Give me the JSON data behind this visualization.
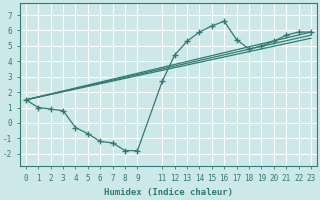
{
  "xlabel": "Humidex (Indice chaleur)",
  "bg_color": "#cde8e8",
  "grid_color": "#ffffff",
  "line_color": "#2e7d72",
  "xlim": [
    -0.5,
    23.5
  ],
  "ylim": [
    -2.8,
    7.8
  ],
  "xticks": [
    0,
    1,
    2,
    3,
    4,
    5,
    6,
    7,
    8,
    9,
    11,
    12,
    13,
    14,
    15,
    16,
    17,
    18,
    19,
    20,
    21,
    22,
    23
  ],
  "yticks": [
    -2,
    -1,
    0,
    1,
    2,
    3,
    4,
    5,
    6,
    7
  ],
  "main_x": [
    0,
    1,
    2,
    3,
    4,
    5,
    6,
    7,
    8,
    9,
    11,
    12,
    13,
    14,
    15,
    16,
    17,
    18,
    19,
    20,
    21,
    22,
    23
  ],
  "main_y": [
    1.5,
    1.0,
    0.9,
    0.8,
    -0.3,
    -0.7,
    -1.2,
    -1.3,
    -1.8,
    -1.8,
    2.7,
    4.4,
    5.3,
    5.9,
    6.3,
    6.6,
    5.4,
    4.8,
    5.0,
    5.3,
    5.7,
    5.9,
    5.9
  ],
  "line1_x": [
    0,
    23
  ],
  "line1_y": [
    1.5,
    5.9
  ],
  "line2_x": [
    0,
    23
  ],
  "line2_y": [
    1.5,
    5.7
  ],
  "line3_x": [
    0,
    23
  ],
  "line3_y": [
    1.5,
    5.5
  ],
  "xlabel_fontsize": 6.5,
  "tick_fontsize": 5.5
}
